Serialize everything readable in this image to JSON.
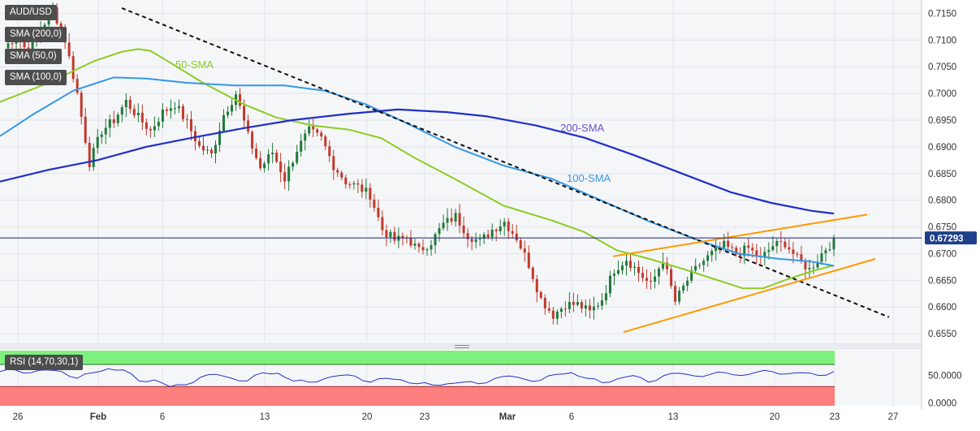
{
  "chart_data": [
    {
      "type": "candlestick",
      "symbol": "AUD/USD",
      "last_price": "0.67293",
      "x_tick_labels": [
        "26",
        "Feb",
        "6",
        "13",
        "20",
        "23",
        "Mar",
        "6",
        "13",
        "20",
        "23",
        "27"
      ],
      "y_tick_labels": [
        "0.7150",
        "0.7100",
        "0.7050",
        "0.7000",
        "0.6950",
        "0.6900",
        "0.6850",
        "0.6800",
        "0.6750",
        "0.6700",
        "0.6650",
        "0.6600",
        "0.6550"
      ],
      "ylim": [
        0.6535,
        0.7175
      ],
      "legend": [
        "SMA (200,0)",
        "SMA (50,0)",
        "SMA (100,0)"
      ],
      "annotations": [
        "50-SMA",
        "200-SMA",
        "100-SMA"
      ],
      "grid": true,
      "colors": {
        "up": "#1f7a3a",
        "down": "#c0392b",
        "sma200": "#1f2fc8",
        "sma100": "#3399e6",
        "sma50": "#8ccc22",
        "trend": "#ff9900",
        "price_line": "#1a237e"
      },
      "close_path": [
        0.7085,
        0.7108,
        0.7075,
        0.712,
        0.7158,
        0.71,
        0.7,
        0.687,
        0.693,
        0.695,
        0.6985,
        0.6955,
        0.693,
        0.6965,
        0.698,
        0.6945,
        0.69,
        0.6885,
        0.696,
        0.7,
        0.692,
        0.686,
        0.689,
        0.684,
        0.6895,
        0.693,
        0.6915,
        0.6865,
        0.6835,
        0.6825,
        0.681,
        0.6745,
        0.6725,
        0.673,
        0.6705,
        0.6722,
        0.6755,
        0.677,
        0.6735,
        0.6722,
        0.6745,
        0.676,
        0.673,
        0.668,
        0.6615,
        0.6585,
        0.6605,
        0.6605,
        0.659,
        0.6615,
        0.667,
        0.669,
        0.6665,
        0.664,
        0.669,
        0.661,
        0.665,
        0.668,
        0.67,
        0.6715,
        0.67,
        0.671,
        0.669,
        0.6715,
        0.672,
        0.669,
        0.667,
        0.67,
        0.6729
      ],
      "sma50": [
        [
          0,
          0.6984
        ],
        [
          60,
          0.702
        ],
        [
          115,
          0.706
        ],
        [
          150,
          0.7078
        ],
        [
          170,
          0.7083
        ],
        [
          185,
          0.708
        ],
        [
          205,
          0.7062
        ],
        [
          250,
          0.702
        ],
        [
          300,
          0.698
        ],
        [
          340,
          0.6955
        ],
        [
          385,
          0.694
        ],
        [
          430,
          0.6932
        ],
        [
          470,
          0.6916
        ],
        [
          510,
          0.688
        ],
        [
          560,
          0.684
        ],
        [
          620,
          0.679
        ],
        [
          680,
          0.6762
        ],
        [
          720,
          0.674
        ],
        [
          760,
          0.6706
        ],
        [
          800,
          0.669
        ],
        [
          840,
          0.6672
        ],
        [
          880,
          0.6652
        ],
        [
          915,
          0.6635
        ],
        [
          940,
          0.6635
        ],
        [
          970,
          0.6652
        ],
        [
          1000,
          0.6667
        ],
        [
          1027,
          0.6678
        ]
      ],
      "sma100": [
        [
          0,
          0.692
        ],
        [
          40,
          0.696
        ],
        [
          90,
          0.7005
        ],
        [
          140,
          0.703
        ],
        [
          180,
          0.7028
        ],
        [
          230,
          0.702
        ],
        [
          290,
          0.7015
        ],
        [
          350,
          0.7015
        ],
        [
          400,
          0.7005
        ],
        [
          450,
          0.698
        ],
        [
          500,
          0.6945
        ],
        [
          560,
          0.69
        ],
        [
          620,
          0.6865
        ],
        [
          680,
          0.684
        ],
        [
          740,
          0.68
        ],
        [
          800,
          0.676
        ],
        [
          860,
          0.6725
        ],
        [
          910,
          0.67
        ],
        [
          960,
          0.669
        ],
        [
          1000,
          0.6685
        ],
        [
          1027,
          0.6677
        ]
      ],
      "sma200": [
        [
          0,
          0.6835
        ],
        [
          60,
          0.6857
        ],
        [
          120,
          0.6875
        ],
        [
          180,
          0.69
        ],
        [
          240,
          0.6918
        ],
        [
          300,
          0.6935
        ],
        [
          360,
          0.695
        ],
        [
          430,
          0.6962
        ],
        [
          490,
          0.697
        ],
        [
          550,
          0.6965
        ],
        [
          600,
          0.6957
        ],
        [
          660,
          0.694
        ],
        [
          720,
          0.6917
        ],
        [
          780,
          0.6885
        ],
        [
          840,
          0.685
        ],
        [
          900,
          0.6815
        ],
        [
          950,
          0.6795
        ],
        [
          1000,
          0.678
        ],
        [
          1027,
          0.6775
        ]
      ],
      "trendlines": [
        {
          "style": "dashed",
          "points": [
            [
              150,
              0.716
            ],
            [
              1095,
              0.6581
            ]
          ]
        },
        {
          "style": "solid",
          "points": [
            [
              755,
              0.6695
            ],
            [
              1068,
              0.6773
            ]
          ]
        },
        {
          "style": "solid",
          "points": [
            [
              768,
              0.6553
            ],
            [
              1078,
              0.669
            ]
          ]
        }
      ]
    },
    {
      "type": "line",
      "indicator": "RSI (14,70,30,1)",
      "y_tick_labels": [
        "50.0000",
        "0.0000"
      ],
      "ylim": [
        -5,
        95
      ],
      "overbought": 70,
      "oversold": 30,
      "values": [
        57,
        60,
        55,
        60,
        57,
        45,
        55,
        62,
        60,
        40,
        42,
        30,
        33,
        47,
        52,
        45,
        40,
        55,
        54,
        40,
        38,
        44,
        50,
        49,
        38,
        45,
        42,
        35,
        33,
        35,
        38,
        35,
        44,
        49,
        43,
        41,
        52,
        55,
        45,
        37,
        44,
        50,
        38,
        50,
        54,
        49,
        52,
        55,
        50,
        56,
        57,
        53,
        55,
        50,
        57
      ]
    }
  ]
}
